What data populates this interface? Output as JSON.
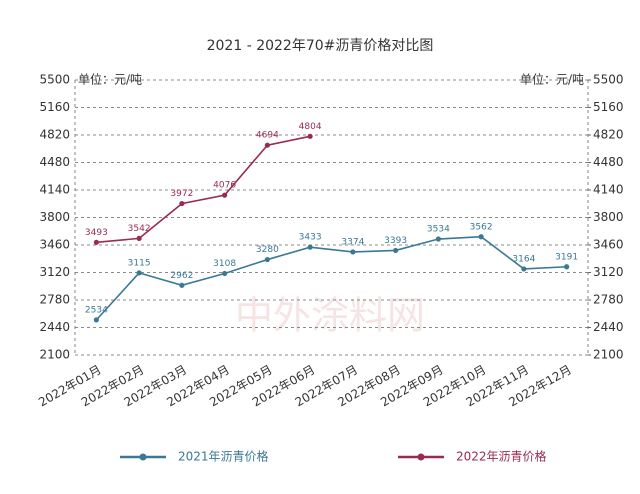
{
  "chart_data": {
    "type": "line",
    "title": "2021 - 2022年70#沥青价格对比图",
    "y_label": "单位：元/吨",
    "y2_label": "单位：元/吨",
    "watermark": "中外涂料网",
    "categories": [
      "2022年01月",
      "2022年02月",
      "2022年03月",
      "2022年04月",
      "2022年05月",
      "2022年06月",
      "2022年07月",
      "2022年08月",
      "2022年09月",
      "2022年10月",
      "2022年11月",
      "2022年12月"
    ],
    "series": [
      {
        "name": "2021年沥青价格",
        "color": "#3b7896",
        "values": [
          2534,
          3115,
          2962,
          3108,
          3280,
          3433,
          3374,
          3393,
          3534,
          3562,
          3164,
          3191
        ]
      },
      {
        "name": "2022年沥青价格",
        "color": "#9a2b4e",
        "values": [
          3493,
          3542,
          3972,
          4076,
          4694,
          4804,
          null,
          null,
          null,
          null,
          null,
          null
        ]
      }
    ],
    "ylim": [
      2100,
      5500
    ],
    "yticks": [
      2100,
      2440,
      2780,
      3120,
      3460,
      3800,
      4140,
      4480,
      4820,
      5160,
      5500
    ],
    "y2lim": [
      2100,
      5500
    ],
    "y2ticks": [
      2100,
      2440,
      2780,
      3120,
      3460,
      3800,
      4140,
      4480,
      4820,
      5160,
      5500
    ],
    "grid": true
  }
}
